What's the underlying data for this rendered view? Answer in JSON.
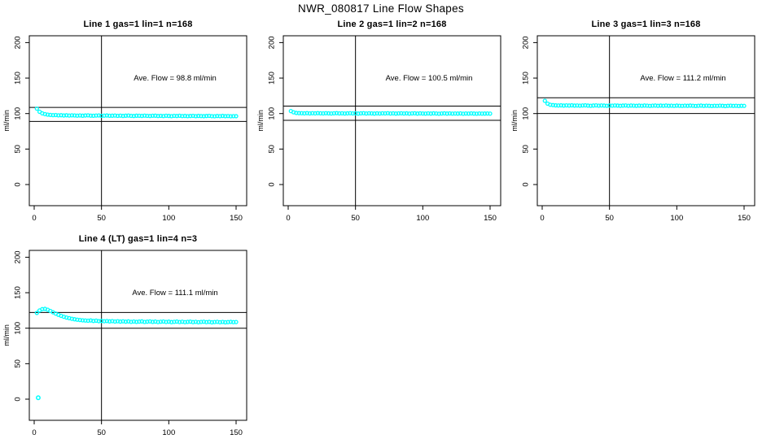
{
  "page_title": "NWR_080817  Line Flow Shapes",
  "marker_color": "#00ffff",
  "axis_color": "#000000",
  "chart_data": [
    {
      "type": "scatter",
      "title": "Line 1 gas=1 lin=1 n=168",
      "annotation": "Ave. Flow =  98.8  ml/min",
      "ave_flow": 98.8,
      "ylabel": "ml/min",
      "xlim": [
        0,
        150
      ],
      "ylim": [
        0,
        200
      ],
      "x_ticks": [
        0,
        50,
        100,
        150
      ],
      "y_ticks": [
        0,
        50,
        100,
        150,
        200
      ],
      "ref_hlines": [
        108.7,
        88.9
      ],
      "ref_vline": 50,
      "grid": false,
      "marker": "open-circle",
      "x_start": 2,
      "x_step": 2,
      "y": [
        107.0,
        102.5,
        100.3,
        99.2,
        98.5,
        98.1,
        97.8,
        97.9,
        97.5,
        97.7,
        97.3,
        97.6,
        97.2,
        97.5,
        97.4,
        97.1,
        97.4,
        97.0,
        97.3,
        97.5,
        97.1,
        96.9,
        97.2,
        97.4,
        96.8,
        97.1,
        97.3,
        96.9,
        97.0,
        97.2,
        96.8,
        97.1,
        96.7,
        97.0,
        97.2,
        96.8,
        96.6,
        97.0,
        96.9,
        96.7,
        97.1,
        96.8,
        96.6,
        96.9,
        97.0,
        96.6,
        96.8,
        96.5,
        96.9,
        96.7,
        96.4,
        96.8,
        96.6,
        96.9,
        96.5,
        96.7,
        96.4,
        96.6,
        96.8,
        96.4,
        96.7,
        96.5,
        96.3,
        96.6,
        96.8,
        96.4,
        96.2,
        96.6,
        96.4,
        96.7,
        96.3,
        96.5,
        96.2,
        96.4,
        96.3
      ],
      "extra_points": []
    },
    {
      "type": "scatter",
      "title": "Line 2 gas=1 lin=2 n=168",
      "annotation": "Ave. Flow =  100.5  ml/min",
      "ave_flow": 100.5,
      "ylabel": "ml/min",
      "xlim": [
        0,
        150
      ],
      "ylim": [
        0,
        200
      ],
      "x_ticks": [
        0,
        50,
        100,
        150
      ],
      "y_ticks": [
        0,
        50,
        100,
        150,
        200
      ],
      "ref_hlines": [
        110.6,
        90.5
      ],
      "ref_vline": 50,
      "grid": false,
      "marker": "open-circle",
      "x_start": 2,
      "x_step": 2,
      "y": [
        103.5,
        101.8,
        100.9,
        100.6,
        100.5,
        100.3,
        100.6,
        100.2,
        100.5,
        100.3,
        100.6,
        100.4,
        100.2,
        100.5,
        100.3,
        100.1,
        100.4,
        100.6,
        100.2,
        100.4,
        100.1,
        100.3,
        100.5,
        100.2,
        100.4,
        100.0,
        100.3,
        100.5,
        100.1,
        100.4,
        100.2,
        100.0,
        100.3,
        100.1,
        100.4,
        100.2,
        100.5,
        100.1,
        100.3,
        100.0,
        100.2,
        100.4,
        100.1,
        100.3,
        99.9,
        100.2,
        100.4,
        100.0,
        100.3,
        100.1,
        99.9,
        100.2,
        100.0,
        100.3,
        100.1,
        99.8,
        100.1,
        100.3,
        100.0,
        100.2,
        99.9,
        100.1,
        100.0,
        100.2,
        99.8,
        100.1,
        99.9,
        100.2,
        100.0,
        99.8,
        100.1,
        99.9,
        100.0,
        100.1,
        99.9
      ],
      "extra_points": []
    },
    {
      "type": "scatter",
      "title": "Line 3 gas=1 lin=3 n=168",
      "annotation": "Ave. Flow =  111.2  ml/min",
      "ave_flow": 111.2,
      "ylabel": "ml/min",
      "xlim": [
        0,
        150
      ],
      "ylim": [
        0,
        200
      ],
      "x_ticks": [
        0,
        50,
        100,
        150
      ],
      "y_ticks": [
        0,
        50,
        100,
        150,
        200
      ],
      "ref_hlines": [
        122.3,
        100.1
      ],
      "ref_vline": 50,
      "grid": false,
      "marker": "open-circle",
      "x_start": 2,
      "x_step": 2,
      "y": [
        118.0,
        114.0,
        112.4,
        111.9,
        111.6,
        111.4,
        111.6,
        111.2,
        111.5,
        111.3,
        111.6,
        111.2,
        111.4,
        111.1,
        111.4,
        111.6,
        111.2,
        111.0,
        111.3,
        111.5,
        111.1,
        111.4,
        111.2,
        111.0,
        111.3,
        111.1,
        111.4,
        111.2,
        110.9,
        111.2,
        111.4,
        111.0,
        111.3,
        111.1,
        110.9,
        111.2,
        111.0,
        111.3,
        111.1,
        110.8,
        111.1,
        111.3,
        110.9,
        111.2,
        111.0,
        111.3,
        110.9,
        111.1,
        110.8,
        111.2,
        111.0,
        110.8,
        111.1,
        110.9,
        111.2,
        111.0,
        110.7,
        111.0,
        111.2,
        110.8,
        111.1,
        110.9,
        110.7,
        111.0,
        110.8,
        111.1,
        110.9,
        110.6,
        110.9,
        111.1,
        110.8,
        111.0,
        110.7,
        110.9,
        110.8
      ],
      "extra_points": []
    },
    {
      "type": "scatter",
      "title": "Line 4 (LT) gas=1 lin=4 n=3",
      "annotation": "Ave. Flow =  111.1  ml/min",
      "ave_flow": 111.1,
      "ylabel": "ml/min",
      "xlim": [
        0,
        150
      ],
      "ylim": [
        0,
        200
      ],
      "x_ticks": [
        0,
        50,
        100,
        150
      ],
      "y_ticks": [
        0,
        50,
        100,
        150,
        200
      ],
      "ref_hlines": [
        122.2,
        100.0
      ],
      "ref_vline": 50,
      "grid": false,
      "marker": "open-circle",
      "x_start": 2,
      "x_step": 2,
      "y": [
        121.5,
        125.0,
        126.8,
        127.2,
        126.0,
        124.3,
        122.4,
        120.6,
        118.9,
        117.4,
        116.1,
        115.0,
        114.1,
        113.3,
        112.6,
        112.0,
        111.5,
        111.1,
        110.8,
        110.5,
        110.9,
        110.2,
        110.6,
        109.9,
        110.3,
        109.8,
        110.1,
        109.6,
        110.0,
        109.4,
        109.8,
        109.3,
        109.7,
        109.2,
        109.6,
        109.0,
        109.4,
        108.9,
        109.3,
        109.6,
        108.8,
        109.2,
        109.5,
        108.9,
        109.3,
        108.7,
        109.1,
        109.4,
        108.8,
        109.2,
        108.6,
        109.0,
        109.3,
        108.7,
        109.1,
        108.5,
        108.9,
        109.2,
        108.6,
        109.0,
        108.4,
        108.8,
        109.1,
        108.5,
        108.9,
        108.3,
        108.7,
        109.0,
        108.4,
        108.8,
        108.3,
        108.6,
        108.9,
        108.5,
        108.7
      ],
      "extra_points": [
        [
          3,
          2.0
        ]
      ]
    }
  ]
}
